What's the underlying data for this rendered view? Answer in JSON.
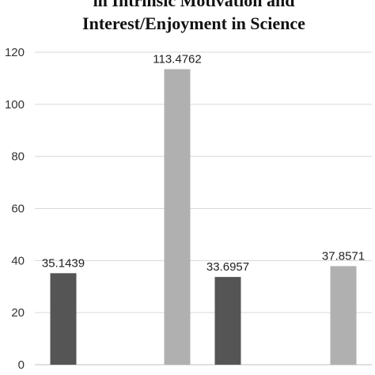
{
  "chart_data": {
    "type": "bar",
    "title_lines": [
      "in Intrinsic Motivation and",
      "Interest/Enjoyment in Science"
    ],
    "categories": [
      "",
      "",
      "",
      ""
    ],
    "values": [
      35.1439,
      113.4762,
      33.6957,
      37.8571
    ],
    "data_labels": [
      "35.1439",
      "113.4762",
      "33.6957",
      "37.8571"
    ],
    "bar_colors": [
      "#555555",
      "#b0b0b0",
      "#555555",
      "#b0b0b0"
    ],
    "xlabel": "",
    "ylabel": "",
    "ylim": [
      0,
      120
    ],
    "yticks": [
      0,
      20,
      40,
      60,
      80,
      100,
      120
    ],
    "grid": true,
    "legend": "none"
  }
}
